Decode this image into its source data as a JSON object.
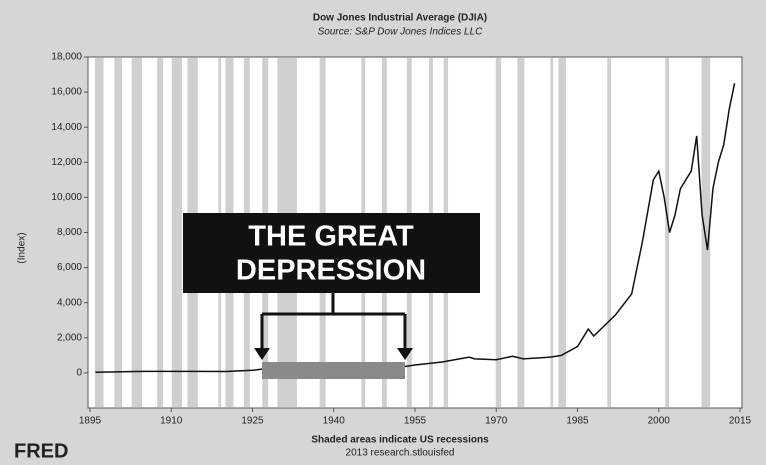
{
  "chart_data": {
    "type": "line",
    "title": "Dow Jones Industrial Average (DJIA)",
    "subtitle": "Source: S&P Dow Jones Indices LLC",
    "ylabel": "(Index)",
    "footer": "Shaded areas indicate US recessions",
    "footer_source": "2013 research.stlouisfed",
    "logo": "FRED",
    "annotation": [
      "THE GREAT",
      "DEPRESSION"
    ],
    "xlim": [
      1895,
      2015
    ],
    "xticks": [
      1895,
      1910,
      1925,
      1940,
      1955,
      1970,
      1985,
      2000,
      2015
    ],
    "ylim": [
      -2000,
      18000
    ],
    "yticks": [
      0,
      {
        "value": 2000,
        "label": "2,000"
      },
      {
        "value": 4000,
        "label": "4,000"
      },
      {
        "value": 6000,
        "label": "6,000"
      },
      {
        "value": 8000,
        "label": "8,000"
      },
      {
        "value": 10000,
        "label": "10,000"
      },
      {
        "value": 12000,
        "label": "12,000"
      },
      {
        "value": 14000,
        "label": "14,000"
      },
      {
        "value": 16000,
        "label": "16,000"
      },
      {
        "value": 18000,
        "label": "18,000"
      }
    ],
    "recession_color": "#cfcfcf",
    "recessions": [
      [
        1895.9,
        1897.5
      ],
      [
        1899.5,
        1900.9
      ],
      [
        1902.7,
        1904.6
      ],
      [
        1907.4,
        1908.5
      ],
      [
        1910.1,
        1912.0
      ],
      [
        1913.0,
        1914.9
      ],
      [
        1918.7,
        1919.2
      ],
      [
        1920.0,
        1921.5
      ],
      [
        1923.4,
        1924.5
      ],
      [
        1926.8,
        1927.9
      ],
      [
        1929.6,
        1933.2
      ],
      [
        1937.4,
        1938.5
      ],
      [
        1945.1,
        1945.8
      ],
      [
        1948.9,
        1949.8
      ],
      [
        1953.5,
        1954.4
      ],
      [
        1957.6,
        1958.3
      ],
      [
        1960.3,
        1961.1
      ],
      [
        1969.9,
        1970.9
      ],
      [
        1973.9,
        1975.2
      ],
      [
        1980.0,
        1980.5
      ],
      [
        1981.5,
        1982.9
      ],
      [
        1990.5,
        1991.2
      ],
      [
        2001.2,
        2001.9
      ],
      [
        2007.9,
        2009.5
      ]
    ],
    "series": [
      {
        "name": "DJIA",
        "color": "#111111",
        "x": [
          1896,
          1900,
          1905,
          1910,
          1915,
          1920,
          1925,
          1929,
          1932,
          1937,
          1942,
          1946,
          1950,
          1955,
          1960,
          1965,
          1966,
          1970,
          1973,
          1975,
          1980,
          1982,
          1985,
          1987,
          1988,
          1990,
          1992,
          1995,
          1997,
          1999,
          2000,
          2001,
          2002,
          2003,
          2004,
          2006,
          2007,
          2008,
          2009,
          2010,
          2011,
          2012,
          2013,
          2014
        ],
        "values": [
          40,
          60,
          90,
          85,
          90,
          80,
          150,
          300,
          60,
          180,
          110,
          200,
          220,
          450,
          620,
          900,
          800,
          750,
          950,
          800,
          900,
          1000,
          1500,
          2500,
          2100,
          2700,
          3300,
          4500,
          7500,
          11000,
          11500,
          10000,
          8000,
          9000,
          10500,
          11500,
          13500,
          9000,
          7000,
          10500,
          12000,
          13000,
          15000,
          16500
        ]
      }
    ]
  }
}
